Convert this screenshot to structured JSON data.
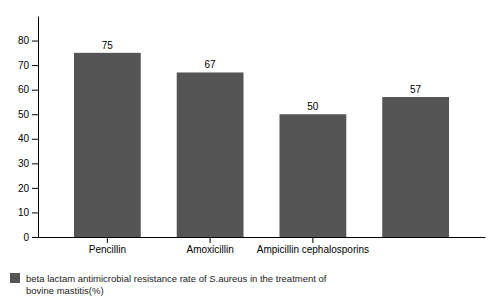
{
  "chart_data": {
    "type": "bar",
    "categories": [
      "Pencillin",
      "Amoxicillin",
      "Ampicillin cephalosporins",
      null
    ],
    "series": [
      {
        "name": "beta lactam antimicrobial resistance rate of S.aureus in the treatment of\nbovine mastitis(%)",
        "color": "#555555",
        "values": [
          75,
          67,
          50,
          57
        ]
      }
    ],
    "ylim": [
      0,
      90
    ],
    "yticks": [
      0,
      10,
      20,
      30,
      40,
      50,
      60,
      70,
      80
    ],
    "data_labels": true,
    "legend": "lower left",
    "grid": false
  }
}
